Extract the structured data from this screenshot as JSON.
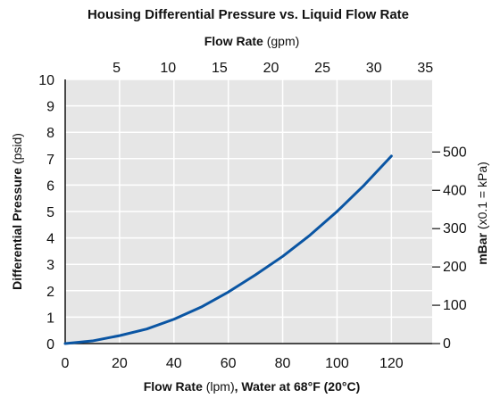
{
  "chart_data": {
    "type": "line",
    "title": "Housing Differential Pressure vs. Liquid Flow Rate",
    "top_axis": {
      "label_bold": "Flow Rate",
      "label_unit": " (gpm)",
      "ticks": [
        "5",
        "10",
        "15",
        "20",
        "25",
        "30",
        "35"
      ],
      "values": [
        5,
        10,
        15,
        20,
        25,
        30,
        35
      ]
    },
    "x_axis": {
      "label_bold": "Flow Rate",
      "label_unit": " (lpm)",
      "label_suffix": ", Water at 68°F (20°C)",
      "ticks": [
        "0",
        "20",
        "40",
        "60",
        "80",
        "100",
        "120"
      ],
      "values": [
        0,
        20,
        40,
        60,
        80,
        100,
        120
      ],
      "range": [
        0,
        135
      ]
    },
    "y_axis": {
      "label_bold": "Differential Pressure",
      "label_unit": " (psid)",
      "ticks": [
        "0",
        "1",
        "2",
        "3",
        "4",
        "5",
        "6",
        "7",
        "8",
        "9",
        "10"
      ],
      "values": [
        0,
        1,
        2,
        3,
        4,
        5,
        6,
        7,
        8,
        9,
        10
      ],
      "range": [
        0,
        10
      ]
    },
    "y_right_axis": {
      "label_bold": "mBar",
      "label_unit": " (x0.1 = kPa)",
      "ticks": [
        "0",
        "100",
        "200",
        "300",
        "400",
        "500"
      ],
      "values": [
        0,
        100,
        200,
        300,
        400,
        500
      ]
    },
    "grid": true,
    "series": [
      {
        "color": "#0a55a3",
        "x": [
          0,
          10,
          20,
          30,
          40,
          50,
          60,
          70,
          80,
          90,
          100,
          110,
          120
        ],
        "y": [
          0,
          0.1,
          0.3,
          0.55,
          0.92,
          1.38,
          1.95,
          2.6,
          3.3,
          4.1,
          5.0,
          6.0,
          7.1
        ]
      }
    ],
    "plot_background": "#e6e6e6"
  }
}
